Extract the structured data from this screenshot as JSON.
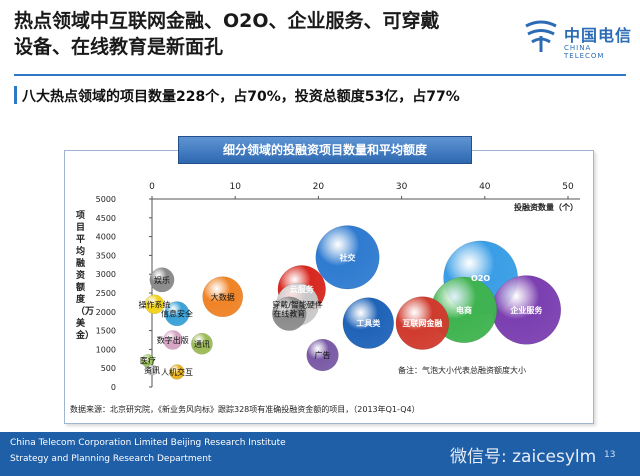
{
  "slide": {
    "title_line1": "热点领域中互联网金融、O2O、企业服务、可穿戴",
    "title_line2": "设备、在线教育是新面孔",
    "subtitle": "八大热点领域的项目数量228个，占70%，投资总额度53亿，占77%",
    "logo_cn": "中国电信",
    "logo_en": "CHINA TELECOM"
  },
  "chart_data": {
    "type": "scatter",
    "title": "细分领域的投融资项目数量和平均额度",
    "xlabel": "投融资数量（个）",
    "ylabel": "项目平均融资额度（万美金）",
    "xlim": [
      0,
      50
    ],
    "ylim": [
      0,
      5000
    ],
    "xticks": [
      0,
      10,
      20,
      30,
      40,
      50
    ],
    "yticks": [
      0,
      500,
      1000,
      1500,
      2000,
      2500,
      3000,
      3500,
      4000,
      4500,
      5000
    ],
    "points": [
      {
        "label": "社交",
        "x": 23.5,
        "y": 3450,
        "size": 6.0,
        "color": "#2f7bd0"
      },
      {
        "label": "O2O",
        "x": 39.5,
        "y": 2900,
        "size": 7.0,
        "color": "#3a9ee6"
      },
      {
        "label": "电商",
        "x": 37.5,
        "y": 2050,
        "size": 6.2,
        "color": "#3fb34f"
      },
      {
        "label": "企业服务",
        "x": 45,
        "y": 2050,
        "size": 6.5,
        "color": "#7b3fb0"
      },
      {
        "label": "工具类",
        "x": 26,
        "y": 1700,
        "size": 4.8,
        "color": "#1f63b8"
      },
      {
        "label": "互联网金融",
        "x": 32.5,
        "y": 1700,
        "size": 5.0,
        "color": "#d03b2e"
      },
      {
        "label": "云服务",
        "x": 18,
        "y": 2600,
        "size": 4.5,
        "color": "#d8281f"
      },
      {
        "label": "穿戴/智能硬件",
        "x": 17.5,
        "y": 2200,
        "size": 4.0,
        "color": "#c9c9c9"
      },
      {
        "label": "在线教育",
        "x": 16.5,
        "y": 1950,
        "size": 3.2,
        "color": "#8c8c8c"
      },
      {
        "label": "大数据",
        "x": 8.5,
        "y": 2400,
        "size": 3.8,
        "color": "#f08326"
      },
      {
        "label": "娱乐",
        "x": 1.2,
        "y": 2850,
        "size": 2.3,
        "color": "#8a8a8a"
      },
      {
        "label": "操作系统",
        "x": 0.3,
        "y": 2200,
        "size": 1.8,
        "color": "#f2d21a"
      },
      {
        "label": "信息安全",
        "x": 3,
        "y": 1950,
        "size": 2.3,
        "color": "#3aa2d8"
      },
      {
        "label": "数字出版",
        "x": 2.5,
        "y": 1250,
        "size": 1.8,
        "color": "#d6a3c4"
      },
      {
        "label": "通讯",
        "x": 6,
        "y": 1150,
        "size": 2.0,
        "color": "#9dbb57"
      },
      {
        "label": "广告",
        "x": 20.5,
        "y": 850,
        "size": 3.0,
        "color": "#7a5aa6"
      },
      {
        "label": "医疗",
        "x": -0.5,
        "y": 700,
        "size": 1.2,
        "color": "#a0c860"
      },
      {
        "label": "资讯",
        "x": 0,
        "y": 450,
        "size": 1.0,
        "color": "#bfbfbf"
      },
      {
        "label": "人机交互",
        "x": 3,
        "y": 400,
        "size": 1.4,
        "color": "#e8b21e"
      }
    ],
    "note": "备注：气泡大小代表总融资额度大小",
    "source": "数据来源：北京研究院，《新业务风向标》跟踪328项有准确投融资金额的项目，（2013年Q1-Q4）"
  },
  "footer": {
    "line1": "China Telecom Corporation Limited Beijing Research Institute",
    "line2": "Strategy and Planning Research Department",
    "wechat": "微信号: zaicesylm",
    "page": "13"
  }
}
